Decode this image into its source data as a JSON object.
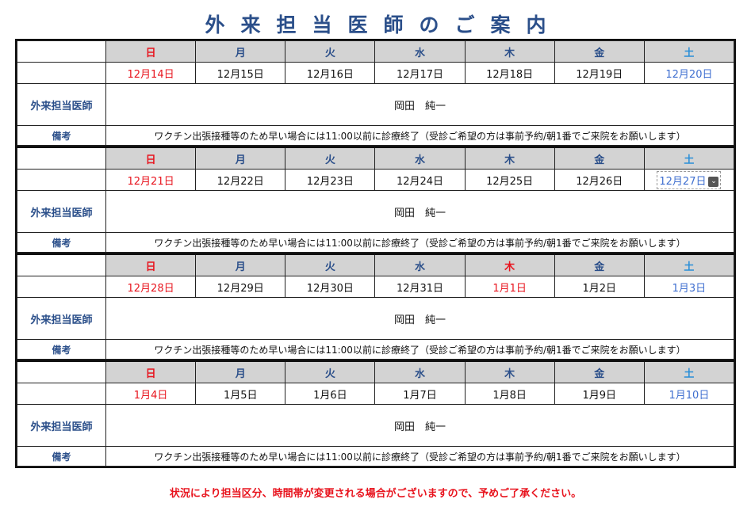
{
  "title": "外来担当医師のご案内",
  "labels": {
    "doctor": "外来担当医師",
    "note": "備考"
  },
  "weekdays": [
    "日",
    "月",
    "火",
    "水",
    "木",
    "金",
    "土"
  ],
  "colors": {
    "title": "#2b4f8a",
    "sunday": "#e8141e",
    "saturday_header": "#2a8fd8",
    "saturday_date": "#3f6fd0",
    "header_bg": "#d3d3d3"
  },
  "weeks": [
    {
      "dates": [
        "12月14日",
        "12月15日",
        "12月16日",
        "12月17日",
        "12月18日",
        "12月19日",
        "12月20日"
      ],
      "holidays": [],
      "doctor": "岡田　純一",
      "note": "ワクチン出張接種等のため早い場合には11:00以前に診療終了（受診ご希望の方は事前予約/朝1番でご来院をお願いします）"
    },
    {
      "dates": [
        "12月21日",
        "12月22日",
        "12月23日",
        "12月24日",
        "12月25日",
        "12月26日",
        "12月27日"
      ],
      "holidays": [],
      "selected_index": 6,
      "doctor": "岡田　純一",
      "note": "ワクチン出張接種等のため早い場合には11:00以前に診療終了（受診ご希望の方は事前予約/朝1番でご来院をお願いします）"
    },
    {
      "dates": [
        "12月28日",
        "12月29日",
        "12月30日",
        "12月31日",
        "1月1日",
        "1月2日",
        "1月3日"
      ],
      "holidays": [
        4
      ],
      "doctor": "岡田　純一",
      "note": "ワクチン出張接種等のため早い場合には11:00以前に診療終了（受診ご希望の方は事前予約/朝1番でご来院をお願いします）"
    },
    {
      "dates": [
        "1月4日",
        "1月5日",
        "1月6日",
        "1月7日",
        "1月8日",
        "1月9日",
        "1月10日"
      ],
      "holidays": [],
      "doctor": "岡田　純一",
      "note": "ワクチン出張接種等のため早い場合には11:00以前に診療終了（受診ご希望の方は事前予約/朝1番でご来院をお願いします）"
    }
  ],
  "footer": "状況により担当区分、時間帯が変更される場合がございますので、予めご了承ください。"
}
